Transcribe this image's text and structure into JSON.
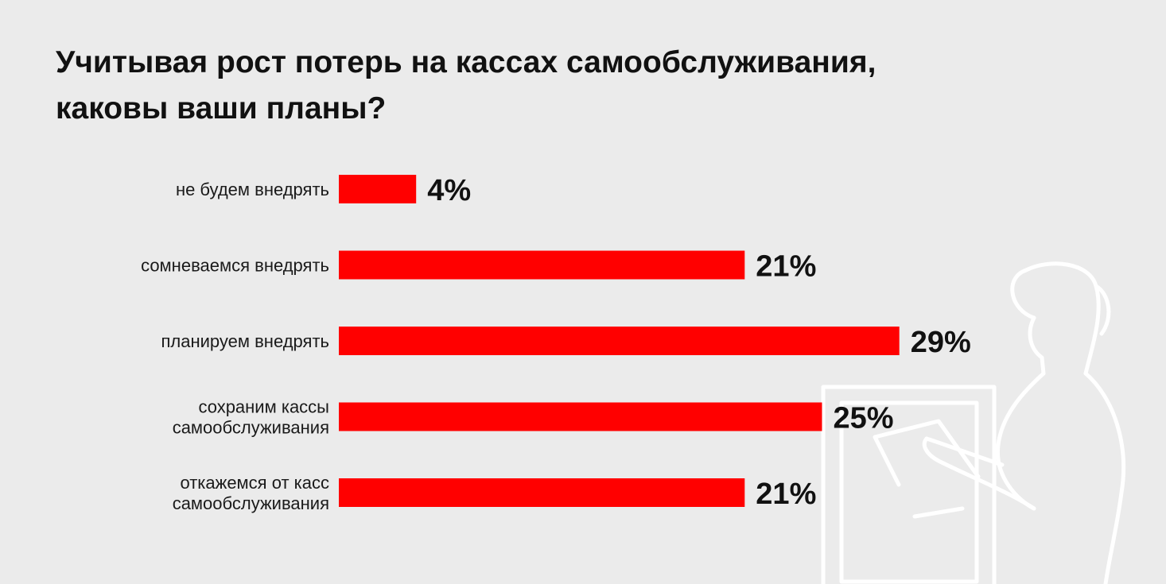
{
  "colors": {
    "background": "#ebebeb",
    "bar": "#ff0000",
    "text": "#111111"
  },
  "chart_data": {
    "type": "bar",
    "orientation": "horizontal",
    "title_lines": [
      "Учитывая рост потерь на кассах самообслуживания,",
      "каковы ваши планы?"
    ],
    "categories": [
      [
        "не будем внедрять"
      ],
      [
        "сомневаемся внедрять"
      ],
      [
        "планируем внедрять"
      ],
      [
        "сохраним кассы",
        "самообслуживания"
      ],
      [
        "откажемся от касс",
        "самообслуживания"
      ]
    ],
    "values": [
      4,
      21,
      29,
      25,
      21
    ],
    "value_labels": [
      "4%",
      "21%",
      "29%",
      "25%",
      "21%"
    ],
    "unit": "%",
    "xlim": [
      0,
      29
    ],
    "grid": false,
    "legend": false
  }
}
